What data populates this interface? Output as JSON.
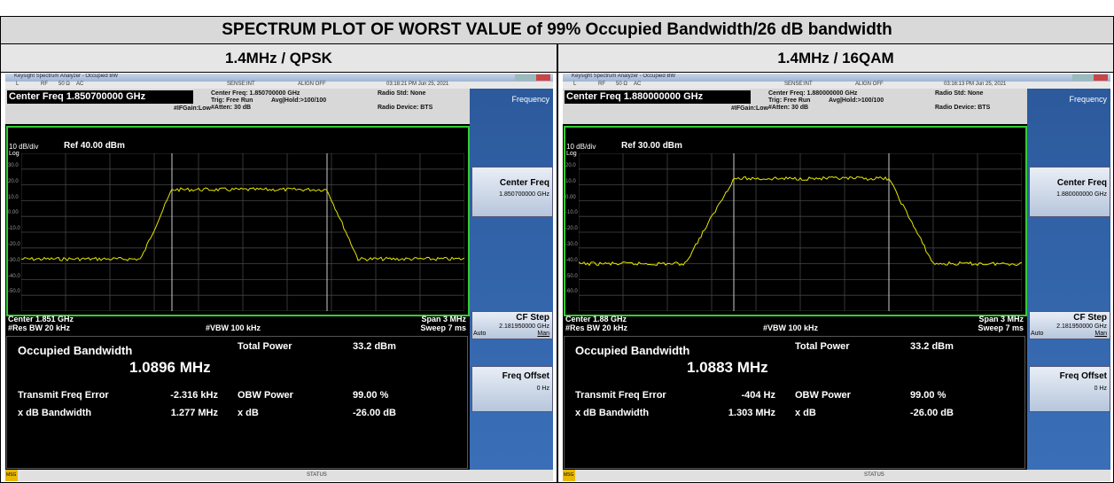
{
  "title": "SPECTRUM PLOT OF WORST VALUE of 99% Occupied Bandwidth/26 dB bandwidth",
  "panels": [
    {
      "header": "1.4MHz / QPSK",
      "window_title": "Keysight Spectrum Analyzer - Occupied BW",
      "status": [
        "L",
        "RF",
        "50 Ω",
        "AC",
        "SENSE:INT",
        "ALIGN OFF",
        "03:18:21 PM Jun 25, 2021"
      ],
      "center_freq": "Center Freq 1.850700000 GHz",
      "settings": [
        "Center Freq: 1.850700000 GHz",
        "Trig: Free Run",
        "Avg|Hold:>100/100",
        "#IFGain:Low",
        "#Atten: 30 dB"
      ],
      "radio": [
        "Radio Std: None",
        "Radio Device: BTS"
      ],
      "scale": "10 dB/div",
      "ref": "Ref 40.00 dBm",
      "log": "Log",
      "y_labels": [
        "30.0",
        "20.0",
        "10.0",
        "0.00",
        "-10.0",
        "-20.0",
        "-30.0",
        "-40.0",
        "-50.0"
      ],
      "footer": [
        "Center 1.851 GHz",
        "#Res BW 20 kHz",
        "#VBW 100 kHz",
        "Span 3 MHz",
        "Sweep 7 ms"
      ],
      "results": {
        "obw_label": "Occupied Bandwidth",
        "obw": "1.0896 MHz",
        "total_power_label": "Total Power",
        "total_power": "33.2 dBm",
        "tfe_label": "Transmit Freq Error",
        "tfe": "-2.316 kHz",
        "obw_power_label": "OBW Power",
        "obw_power": "99.00 %",
        "xdb_bw_label": "x dB Bandwidth",
        "xdb_bw": "1.277 MHz",
        "xdb_label": "x dB",
        "xdb": "-26.00 dB"
      },
      "menu": {
        "title": "Frequency",
        "center_label": "Center Freq",
        "center_value": "1.850700000 GHz",
        "step_label": "CF Step",
        "step_value": "2.181950000 GHz",
        "auto": "Auto",
        "man": "Man",
        "offset_label": "Freq Offset",
        "offset_value": "0 Hz"
      },
      "bottom": [
        "MSG",
        "STATUS"
      ]
    },
    {
      "header": "1.4MHz / 16QAM",
      "window_title": "Keysight Spectrum Analyzer - Occupied BW",
      "status": [
        "L",
        "RF",
        "50 Ω",
        "AC",
        "SENSE:INT",
        "ALIGN OFF",
        "03:16:13 PM Jun 25, 2021"
      ],
      "center_freq": "Center Freq 1.880000000 GHz",
      "settings": [
        "Center Freq: 1.880000000 GHz",
        "Trig: Free Run",
        "Avg|Hold:>100/100",
        "#IFGain:Low",
        "#Atten: 30 dB"
      ],
      "radio": [
        "Radio Std: None",
        "Radio Device: BTS"
      ],
      "scale": "10 dB/div",
      "ref": "Ref 30.00 dBm",
      "log": "Log",
      "y_labels": [
        "20.0",
        "10.0",
        "0.00",
        "-10.0",
        "-20.0",
        "-30.0",
        "-40.0",
        "-50.0",
        "-60.0"
      ],
      "footer": [
        "Center 1.88 GHz",
        "#Res BW 20 kHz",
        "#VBW 100 kHz",
        "Span 3 MHz",
        "Sweep 7 ms"
      ],
      "results": {
        "obw_label": "Occupied Bandwidth",
        "obw": "1.0883 MHz",
        "total_power_label": "Total Power",
        "total_power": "33.2 dBm",
        "tfe_label": "Transmit Freq Error",
        "tfe": "-404 Hz",
        "obw_power_label": "OBW Power",
        "obw_power": "99.00 %",
        "xdb_bw_label": "x dB Bandwidth",
        "xdb_bw": "1.303 MHz",
        "xdb_label": "x dB",
        "xdb": "-26.00 dB"
      },
      "menu": {
        "title": "Frequency",
        "center_label": "Center Freq",
        "center_value": "1.880000000 GHz",
        "step_label": "CF Step",
        "step_value": "2.181950000 GHz",
        "auto": "Auto",
        "man": "Man",
        "offset_label": "Freq Offset",
        "offset_value": "0 Hz"
      },
      "bottom": [
        "MSG",
        "STATUS"
      ]
    }
  ]
}
